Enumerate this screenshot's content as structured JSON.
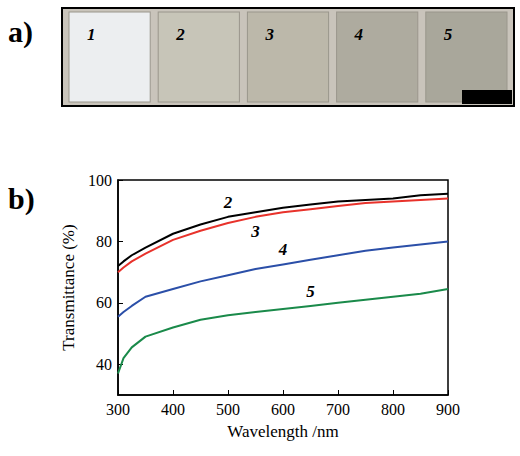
{
  "photo": {
    "panel": "a)",
    "samples": [
      "1",
      "2",
      "3",
      "4",
      "5"
    ]
  },
  "chart_data": {
    "type": "line",
    "panel": "b)",
    "x_label": "Wavelength /nm",
    "y_label": "Transmittance (%)",
    "x": [
      300,
      310,
      325,
      350,
      400,
      450,
      500,
      550,
      600,
      650,
      700,
      750,
      800,
      850,
      900
    ],
    "series": [
      {
        "name": "2",
        "color": "#000000",
        "values": [
          72,
          73.5,
          75.5,
          78,
          82.5,
          85.5,
          88,
          89.5,
          91,
          92,
          93,
          93.5,
          94,
          95,
          95.5
        ]
      },
      {
        "name": "3",
        "color": "#e8322b",
        "values": [
          70,
          71.5,
          73.5,
          76,
          80.5,
          83.5,
          86,
          88,
          89.5,
          90.5,
          91.5,
          92.5,
          93,
          93.5,
          94
        ]
      },
      {
        "name": "4",
        "color": "#2b4fa8",
        "values": [
          55.5,
          57,
          59,
          62,
          64.5,
          67,
          69,
          71,
          72.5,
          74,
          75.5,
          77,
          78,
          79,
          80
        ]
      },
      {
        "name": "5",
        "color": "#1a8a4a",
        "values": [
          37,
          42,
          45.5,
          49,
          52,
          54.5,
          56,
          57,
          58,
          59,
          60,
          61,
          62,
          63,
          64.5
        ]
      }
    ],
    "xlim": [
      300,
      900
    ],
    "xticks": [
      300,
      400,
      500,
      600,
      700,
      800,
      900
    ],
    "ylim": [
      30,
      100
    ],
    "yticks": [
      40,
      60,
      80,
      100
    ],
    "grid": false
  }
}
